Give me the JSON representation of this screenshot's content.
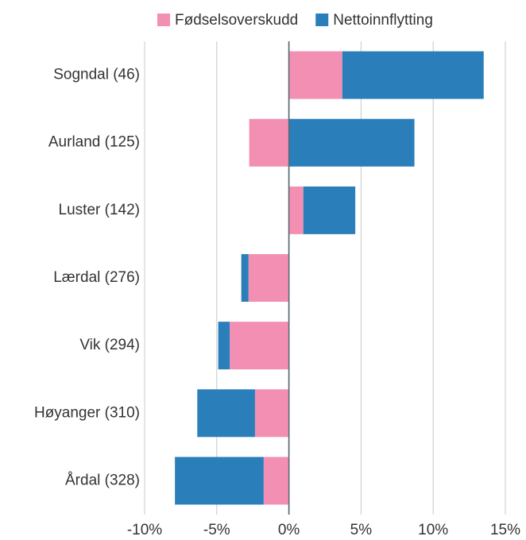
{
  "chart_data": {
    "type": "bar",
    "orientation": "horizontal",
    "stacked": true,
    "categories": [
      "Sogndal (46)",
      "Aurland (125)",
      "Luster (142)",
      "Lærdal (276)",
      "Vik (294)",
      "Høyanger (310)",
      "Årdal (328)"
    ],
    "series": [
      {
        "name": "Fødselsoverskudd",
        "color": "#f28fb3",
        "values": [
          3.7,
          -2.75,
          1.0,
          -2.8,
          -4.1,
          -2.35,
          -1.75
        ]
      },
      {
        "name": "Nettoinnflytting",
        "color": "#2a7fba",
        "values": [
          9.8,
          8.7,
          3.6,
          -0.5,
          -0.8,
          -4.0,
          -6.15
        ]
      }
    ],
    "xlim": [
      -10,
      15
    ],
    "xticks": [
      {
        "value": -10,
        "label": "-10%"
      },
      {
        "value": -5,
        "label": "-5%"
      },
      {
        "value": 0,
        "label": "0%"
      },
      {
        "value": 5,
        "label": "5%"
      },
      {
        "value": 10,
        "label": "10%"
      },
      {
        "value": 15,
        "label": "15%"
      }
    ],
    "grid": true,
    "legend": "top"
  }
}
